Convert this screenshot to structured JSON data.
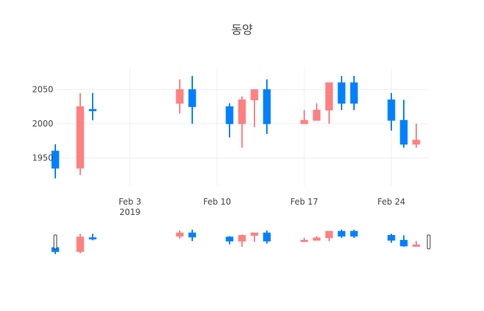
{
  "chart_data": {
    "type": "candlestick",
    "title": "동양",
    "xlabel": "",
    "ylabel": "",
    "grid": true,
    "rangeslider": true,
    "x_range": [
      "2019-01-28",
      "2019-02-27"
    ],
    "ylim": [
      1910,
      2080
    ],
    "x_ticks": [
      {
        "date": "2019-02-03",
        "label": "Feb 3",
        "sublabel": "2019"
      },
      {
        "date": "2019-02-10",
        "label": "Feb 10",
        "sublabel": ""
      },
      {
        "date": "2019-02-17",
        "label": "Feb 17",
        "sublabel": ""
      },
      {
        "date": "2019-02-24",
        "label": "Feb 24",
        "sublabel": ""
      }
    ],
    "y_ticks": [
      {
        "value": 1950,
        "label": "1950"
      },
      {
        "value": 2000,
        "label": "2000"
      },
      {
        "value": 2050,
        "label": "2050"
      }
    ],
    "colors": {
      "increasing": "#ff8080",
      "decreasing": "#0080ff",
      "grid": "#eeeeee",
      "text": "#444444"
    },
    "candles": [
      {
        "date": "2019-01-28",
        "open": 1960,
        "high": 1970,
        "low": 1920,
        "close": 1935
      },
      {
        "date": "2019-01-30",
        "open": 1935,
        "high": 2045,
        "low": 1925,
        "close": 2025
      },
      {
        "date": "2019-01-31",
        "open": 2021,
        "high": 2045,
        "low": 2005,
        "close": 2019
      },
      {
        "date": "2019-02-07",
        "open": 2030,
        "high": 2065,
        "low": 2015,
        "close": 2050
      },
      {
        "date": "2019-02-08",
        "open": 2050,
        "high": 2070,
        "low": 2000,
        "close": 2025
      },
      {
        "date": "2019-02-11",
        "open": 2025,
        "high": 2030,
        "low": 1980,
        "close": 2000
      },
      {
        "date": "2019-02-12",
        "open": 2000,
        "high": 2040,
        "low": 1965,
        "close": 2035
      },
      {
        "date": "2019-02-13",
        "open": 2035,
        "high": 2050,
        "low": 1995,
        "close": 2050
      },
      {
        "date": "2019-02-14",
        "open": 2050,
        "high": 2065,
        "low": 1985,
        "close": 2000
      },
      {
        "date": "2019-02-17",
        "open": 2000,
        "high": 2020,
        "low": 2000,
        "close": 2005
      },
      {
        "date": "2019-02-18",
        "open": 2005,
        "high": 2030,
        "low": 2005,
        "close": 2020
      },
      {
        "date": "2019-02-19",
        "open": 2020,
        "high": 2060,
        "low": 2000,
        "close": 2060
      },
      {
        "date": "2019-02-20",
        "open": 2060,
        "high": 2070,
        "low": 2020,
        "close": 2030
      },
      {
        "date": "2019-02-21",
        "open": 2060,
        "high": 2070,
        "low": 2020,
        "close": 2030
      },
      {
        "date": "2019-02-24",
        "open": 2035,
        "high": 2045,
        "low": 1990,
        "close": 2005
      },
      {
        "date": "2019-02-25",
        "open": 2005,
        "high": 2035,
        "low": 1965,
        "close": 1970
      },
      {
        "date": "2019-02-26",
        "open": 1970,
        "high": 2000,
        "low": 1965,
        "close": 1976
      }
    ]
  }
}
